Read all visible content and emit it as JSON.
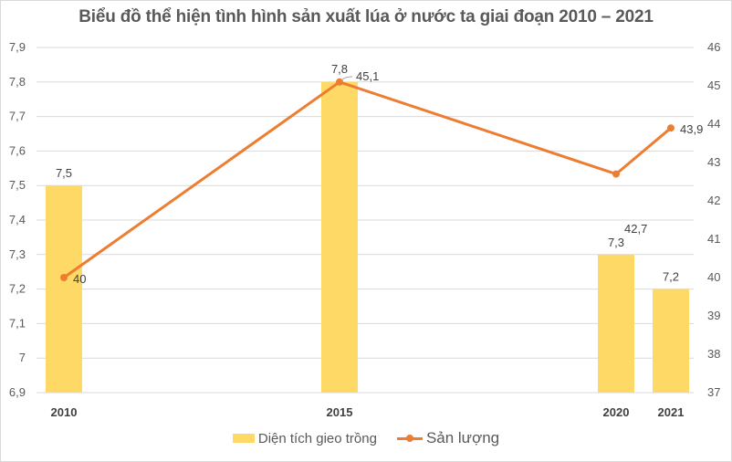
{
  "chart_data": {
    "type": "bar+line",
    "title": "Biểu đồ thể hiện tình hình sản xuất lúa ở nước ta giai đoạn 2010 – 2021",
    "categories": [
      "2010",
      "2015",
      "2020",
      "2021"
    ],
    "series": [
      {
        "name": "Diện tích gieo trồng",
        "type": "bar",
        "axis": "left",
        "values": [
          7.5,
          7.8,
          7.3,
          7.2
        ],
        "labels": [
          "7,5",
          "7,8",
          "7,3",
          "7,2"
        ],
        "color": "#FFD966"
      },
      {
        "name": "Sản lượng",
        "type": "line",
        "axis": "right",
        "values": [
          40,
          45.1,
          42.7,
          43.9
        ],
        "labels": [
          "40",
          "45,1",
          "42,7",
          "43,9"
        ],
        "color": "#ED7D31"
      }
    ],
    "y_left": {
      "ylim": [
        6.9,
        7.9
      ],
      "ticks": [
        "7,9",
        "7,8",
        "7,7",
        "7,6",
        "7,5",
        "7,4",
        "7,3",
        "7,2",
        "7,1",
        "7",
        "6,9"
      ]
    },
    "y_right": {
      "ylim": [
        37,
        46
      ],
      "ticks": [
        "46",
        "45",
        "44",
        "43",
        "42",
        "41",
        "40",
        "39",
        "38",
        "37"
      ]
    },
    "grid": true,
    "legend_position": "bottom"
  },
  "legend": {
    "bar_label": "Diện tích gieo trồng",
    "line_label": "Sản lượng"
  }
}
